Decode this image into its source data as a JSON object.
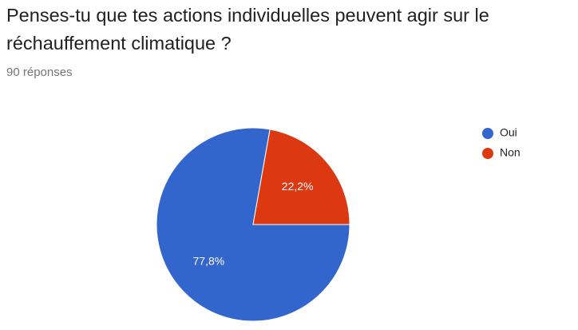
{
  "chart_data": {
    "type": "pie",
    "title": "Penses-tu que tes actions individuelles peuvent agir sur le réchauffement climatique ?",
    "subtitle": "90 réponses",
    "categories": [
      "Oui",
      "Non"
    ],
    "values": [
      77.8,
      22.2
    ],
    "value_labels": [
      "77,8%",
      "22,2%"
    ],
    "colors": [
      "#3366cc",
      "#dc3912"
    ],
    "legend": "right"
  }
}
